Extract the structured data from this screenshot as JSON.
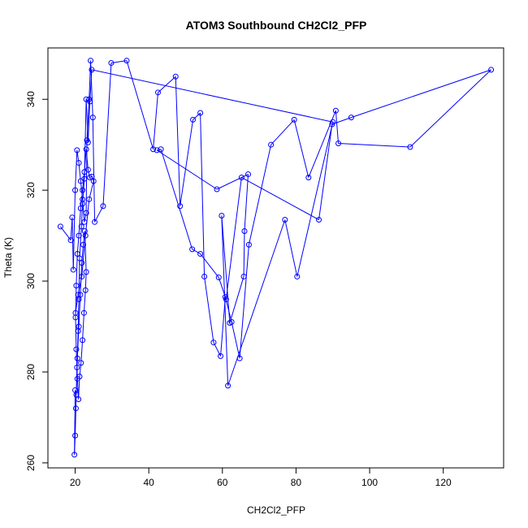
{
  "chart_data": {
    "type": "scatter",
    "connected": true,
    "title": "ATOM3 Southbound CH2Cl2_PFP",
    "xlabel": "CH2Cl2_PFP",
    "ylabel": "Theta (K)",
    "xlim": [
      12.6,
      136.4
    ],
    "ylim": [
      258.9,
      351.3
    ],
    "xticks": [
      20,
      40,
      60,
      80,
      100,
      120
    ],
    "yticks": [
      260,
      280,
      300,
      320,
      340
    ],
    "grid": false,
    "legend": "none",
    "color": "#0000ff",
    "series": [
      {
        "x": [
          16.0,
          18.8,
          19.2,
          19.5,
          20.0,
          20.5,
          21.0,
          21.5,
          22.0,
          22.5,
          23.0,
          23.2,
          23.8,
          24.2,
          24.8,
          25.3,
          27.6,
          29.8,
          34.0,
          41.2,
          42.5,
          47.3,
          48.5,
          52.0,
          54.0,
          55.1,
          57.6,
          59.5,
          60.8,
          62.5,
          64.7,
          67.2,
          73.2,
          79.5,
          83.4,
          90.8,
          91.5,
          111.0,
          133.0,
          95.0,
          89.8,
          86.2,
          65.2,
          61.0,
          59.0,
          54.0,
          51.8,
          43.3,
          42.2,
          58.5,
          67.0,
          66.0,
          65.8,
          62.0,
          59.8,
          61.5,
          77.0,
          80.3,
          90.0,
          24.5,
          24.0,
          23.5,
          23.0,
          22.5,
          22.0,
          21.7,
          21.2,
          21.0,
          20.8,
          20.5,
          20.2,
          20.0,
          19.8,
          20.0,
          20.3,
          20.6,
          21.0,
          21.4,
          21.8,
          22.2,
          22.6,
          23.0,
          22.8,
          22.4,
          22.0,
          21.6,
          21.2,
          20.9,
          20.6,
          20.3,
          20.1,
          20.3,
          20.6,
          21.0,
          21.5,
          22.0,
          22.5,
          23.0,
          23.5,
          24.0,
          24.5,
          25.0,
          23.8,
          22.8,
          21.8,
          20.8,
          20.1
        ],
        "y": [
          312.0,
          309.0,
          314.0,
          302.5,
          320.0,
          328.8,
          326.0,
          322.0,
          318.0,
          313.0,
          315.0,
          331.0,
          340.0,
          348.5,
          336.0,
          313.0,
          316.5,
          348.0,
          348.5,
          329.0,
          341.5,
          345.0,
          316.5,
          335.5,
          337.0,
          301.0,
          286.5,
          283.5,
          296.5,
          291.0,
          283.0,
          308.0,
          330.0,
          335.5,
          322.8,
          337.5,
          330.3,
          329.5,
          346.5,
          336.0,
          334.5,
          313.5,
          322.8,
          296.0,
          300.8,
          306.0,
          307.0,
          329.0,
          328.8,
          320.2,
          323.5,
          311.0,
          301.0,
          290.8,
          314.4,
          277.0,
          313.5,
          301.0,
          335.0,
          346.5,
          339.5,
          330.5,
          340.0,
          322.5,
          317.0,
          312.0,
          305.0,
          296.0,
          289.0,
          281.0,
          272.0,
          266.0,
          261.8,
          276.0,
          275.0,
          283.0,
          290.0,
          297.0,
          304.0,
          308.0,
          311.0,
          302.0,
          298.0,
          293.0,
          287.0,
          282.0,
          279.0,
          274.0,
          278.5,
          285.0,
          292.0,
          299.0,
          306.0,
          310.0,
          316.0,
          320.0,
          324.0,
          329.0,
          324.5,
          322.8,
          323.0,
          322.0,
          318.0,
          310.0,
          301.0,
          297.0,
          293.0
        ]
      }
    ]
  }
}
